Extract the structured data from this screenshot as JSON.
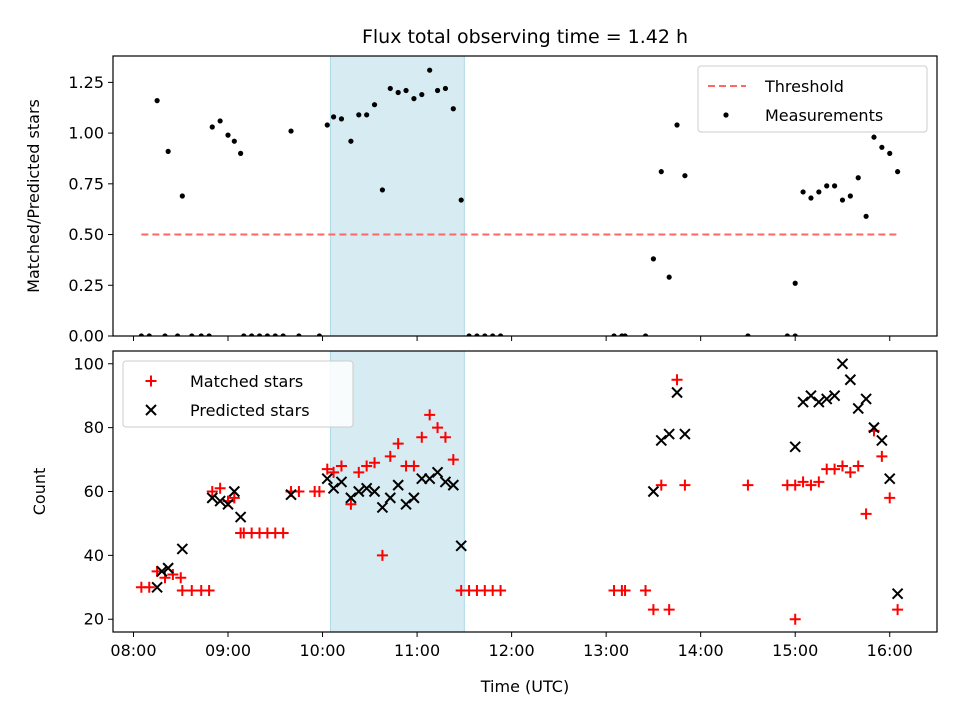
{
  "figure": {
    "title": "Flux total observing time = 1.42 h"
  },
  "chart_data": [
    {
      "type": "scatter",
      "panel": "top",
      "ylabel": "Matched/Predicted stars",
      "xlabel": "",
      "xlim": [
        "07:47",
        "16:30"
      ],
      "ylim": [
        0,
        1.38
      ],
      "yticks": [
        0.0,
        0.25,
        0.5,
        0.75,
        1.0,
        1.25
      ],
      "ytick_labels": [
        "0.00",
        "0.25",
        "0.50",
        "0.75",
        "1.00",
        "1.25"
      ],
      "highlight_span": [
        "10:05",
        "11:30"
      ],
      "highlight_color": "#add8e6",
      "threshold": {
        "name": "Threshold",
        "value": 0.5,
        "x": [
          "08:05",
          "16:05"
        ],
        "color": "#ff6666",
        "style": "dashed"
      },
      "legend": {
        "placement": "top-right",
        "entries": [
          "Threshold",
          "Measurements"
        ]
      },
      "series": [
        {
          "name": "Measurements",
          "color": "#000000",
          "marker": "dot",
          "points": [
            [
              "08:05",
              0
            ],
            [
              "08:10",
              0
            ],
            [
              "08:15",
              1.16
            ],
            [
              "08:20",
              0
            ],
            [
              "08:22",
              0.91
            ],
            [
              "08:28",
              0
            ],
            [
              "08:31",
              0.69
            ],
            [
              "08:37",
              0
            ],
            [
              "08:43",
              0
            ],
            [
              "08:48",
              0
            ],
            [
              "08:50",
              1.03
            ],
            [
              "08:55",
              1.06
            ],
            [
              "09:00",
              0.99
            ],
            [
              "09:04",
              0.96
            ],
            [
              "09:08",
              0.9
            ],
            [
              "09:10",
              0
            ],
            [
              "09:15",
              0
            ],
            [
              "09:20",
              0
            ],
            [
              "09:25",
              0
            ],
            [
              "09:30",
              0
            ],
            [
              "09:35",
              0
            ],
            [
              "09:40",
              1.01
            ],
            [
              "09:45",
              0
            ],
            [
              "09:58",
              0
            ],
            [
              "10:03",
              1.04
            ],
            [
              "10:07",
              1.08
            ],
            [
              "10:12",
              1.07
            ],
            [
              "10:18",
              0.96
            ],
            [
              "10:23",
              1.09
            ],
            [
              "10:28",
              1.09
            ],
            [
              "10:33",
              1.14
            ],
            [
              "10:38",
              0.72
            ],
            [
              "10:43",
              1.22
            ],
            [
              "10:48",
              1.2
            ],
            [
              "10:53",
              1.21
            ],
            [
              "10:58",
              1.17
            ],
            [
              "11:03",
              1.19
            ],
            [
              "11:08",
              1.31
            ],
            [
              "11:13",
              1.21
            ],
            [
              "11:18",
              1.22
            ],
            [
              "11:23",
              1.12
            ],
            [
              "11:28",
              0.67
            ],
            [
              "11:33",
              0
            ],
            [
              "11:38",
              0
            ],
            [
              "11:43",
              0
            ],
            [
              "11:48",
              0
            ],
            [
              "11:53",
              0
            ],
            [
              "13:05",
              0
            ],
            [
              "13:10",
              0
            ],
            [
              "13:12",
              0
            ],
            [
              "13:25",
              0
            ],
            [
              "13:30",
              0.38
            ],
            [
              "13:35",
              0.81
            ],
            [
              "13:40",
              0.29
            ],
            [
              "13:45",
              1.04
            ],
            [
              "13:50",
              0.79
            ],
            [
              "14:30",
              0
            ],
            [
              "14:55",
              0
            ],
            [
              "15:00",
              0
            ],
            [
              "15:00",
              0.26
            ],
            [
              "15:05",
              0.71
            ],
            [
              "15:10",
              0.68
            ],
            [
              "15:15",
              0.71
            ],
            [
              "15:20",
              0.74
            ],
            [
              "15:25",
              0.74
            ],
            [
              "15:30",
              0.67
            ],
            [
              "15:35",
              0.69
            ],
            [
              "15:40",
              0.78
            ],
            [
              "15:45",
              0.59
            ],
            [
              "15:50",
              0.98
            ],
            [
              "15:55",
              0.93
            ],
            [
              "16:00",
              0.9
            ],
            [
              "16:05",
              0.81
            ]
          ]
        }
      ]
    },
    {
      "type": "scatter",
      "panel": "bottom",
      "ylabel": "Count",
      "xlabel": "Time (UTC)",
      "xlim": [
        "07:47",
        "16:30"
      ],
      "xticks": [
        "08:00",
        "09:00",
        "10:00",
        "11:00",
        "12:00",
        "13:00",
        "14:00",
        "15:00",
        "16:00"
      ],
      "ylim": [
        16,
        104
      ],
      "yticks": [
        20,
        40,
        60,
        80,
        100
      ],
      "ytick_labels": [
        "20",
        "40",
        "60",
        "80",
        "100"
      ],
      "highlight_span": [
        "10:05",
        "11:30"
      ],
      "highlight_color": "#add8e6",
      "legend": {
        "placement": "top-left",
        "entries": [
          "Matched stars",
          "Predicted stars"
        ]
      },
      "series": [
        {
          "name": "Matched stars",
          "color": "#ff0000",
          "marker": "plus",
          "points": [
            [
              "08:05",
              30
            ],
            [
              "08:10",
              30
            ],
            [
              "08:15",
              35
            ],
            [
              "08:20",
              33
            ],
            [
              "08:25",
              34
            ],
            [
              "08:30",
              33
            ],
            [
              "08:31",
              29
            ],
            [
              "08:37",
              29
            ],
            [
              "08:43",
              29
            ],
            [
              "08:48",
              29
            ],
            [
              "08:50",
              60
            ],
            [
              "08:55",
              61
            ],
            [
              "09:00",
              57
            ],
            [
              "09:04",
              58
            ],
            [
              "09:08",
              47
            ],
            [
              "09:10",
              47
            ],
            [
              "09:15",
              47
            ],
            [
              "09:20",
              47
            ],
            [
              "09:25",
              47
            ],
            [
              "09:30",
              47
            ],
            [
              "09:35",
              47
            ],
            [
              "09:40",
              60
            ],
            [
              "09:45",
              60
            ],
            [
              "09:55",
              60
            ],
            [
              "09:58",
              60
            ],
            [
              "10:03",
              67
            ],
            [
              "10:07",
              66
            ],
            [
              "10:12",
              68
            ],
            [
              "10:18",
              56
            ],
            [
              "10:23",
              66
            ],
            [
              "10:28",
              68
            ],
            [
              "10:33",
              69
            ],
            [
              "10:38",
              40
            ],
            [
              "10:43",
              71
            ],
            [
              "10:48",
              75
            ],
            [
              "10:53",
              68
            ],
            [
              "10:58",
              68
            ],
            [
              "11:03",
              77
            ],
            [
              "11:08",
              84
            ],
            [
              "11:13",
              80
            ],
            [
              "11:18",
              77
            ],
            [
              "11:23",
              70
            ],
            [
              "11:28",
              29
            ],
            [
              "11:33",
              29
            ],
            [
              "11:38",
              29
            ],
            [
              "11:43",
              29
            ],
            [
              "11:48",
              29
            ],
            [
              "11:53",
              29
            ],
            [
              "13:05",
              29
            ],
            [
              "13:10",
              29
            ],
            [
              "13:12",
              29
            ],
            [
              "13:25",
              29
            ],
            [
              "13:30",
              23
            ],
            [
              "13:35",
              62
            ],
            [
              "13:40",
              23
            ],
            [
              "13:45",
              95
            ],
            [
              "13:50",
              62
            ],
            [
              "14:30",
              62
            ],
            [
              "14:55",
              62
            ],
            [
              "15:00",
              62
            ],
            [
              "15:00",
              20
            ],
            [
              "15:05",
              63
            ],
            [
              "15:10",
              62
            ],
            [
              "15:15",
              63
            ],
            [
              "15:20",
              67
            ],
            [
              "15:25",
              67
            ],
            [
              "15:30",
              68
            ],
            [
              "15:35",
              66
            ],
            [
              "15:40",
              68
            ],
            [
              "15:45",
              53
            ],
            [
              "15:50",
              79
            ],
            [
              "15:55",
              71
            ],
            [
              "16:00",
              58
            ],
            [
              "16:05",
              23
            ]
          ]
        },
        {
          "name": "Predicted stars",
          "color": "#000000",
          "marker": "x",
          "points": [
            [
              "08:15",
              30
            ],
            [
              "08:18",
              35
            ],
            [
              "08:22",
              36
            ],
            [
              "08:31",
              42
            ],
            [
              "08:50",
              58
            ],
            [
              "08:55",
              57
            ],
            [
              "09:00",
              56
            ],
            [
              "09:04",
              60
            ],
            [
              "09:08",
              52
            ],
            [
              "09:40",
              59
            ],
            [
              "10:03",
              64
            ],
            [
              "10:07",
              61
            ],
            [
              "10:12",
              63
            ],
            [
              "10:18",
              58
            ],
            [
              "10:23",
              60
            ],
            [
              "10:28",
              61
            ],
            [
              "10:33",
              60
            ],
            [
              "10:38",
              55
            ],
            [
              "10:43",
              58
            ],
            [
              "10:48",
              62
            ],
            [
              "10:53",
              56
            ],
            [
              "10:58",
              58
            ],
            [
              "11:03",
              64
            ],
            [
              "11:08",
              64
            ],
            [
              "11:13",
              66
            ],
            [
              "11:18",
              63
            ],
            [
              "11:23",
              62
            ],
            [
              "11:28",
              43
            ],
            [
              "13:30",
              60
            ],
            [
              "13:35",
              76
            ],
            [
              "13:40",
              78
            ],
            [
              "13:45",
              91
            ],
            [
              "13:50",
              78
            ],
            [
              "15:00",
              74
            ],
            [
              "15:05",
              88
            ],
            [
              "15:10",
              90
            ],
            [
              "15:15",
              88
            ],
            [
              "15:20",
              89
            ],
            [
              "15:25",
              90
            ],
            [
              "15:30",
              100
            ],
            [
              "15:35",
              95
            ],
            [
              "15:40",
              86
            ],
            [
              "15:45",
              89
            ],
            [
              "15:50",
              80
            ],
            [
              "15:55",
              76
            ],
            [
              "16:00",
              64
            ],
            [
              "16:05",
              28
            ]
          ]
        }
      ]
    }
  ]
}
